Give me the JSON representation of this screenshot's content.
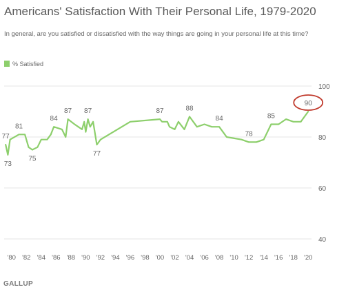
{
  "source": "GALLUP",
  "chart_data": {
    "type": "line",
    "title": "Americans' Satisfaction With Their Personal Life, 1979-2020",
    "subtitle": "In general, are you satisfied or dissatisfied with the way things are going in your personal life at this time?",
    "legend": "top-left",
    "grid": true,
    "ylim": [
      40,
      100
    ],
    "yticks": [
      40,
      60,
      80,
      100
    ],
    "xlim": [
      1979,
      2021
    ],
    "xtick_values": [
      1980,
      1982,
      1984,
      1986,
      1988,
      1990,
      1992,
      1994,
      1996,
      1998,
      2000,
      2002,
      2004,
      2006,
      2008,
      2010,
      2012,
      2014,
      2016,
      2018,
      2020
    ],
    "xtick_labels": [
      "'80",
      "'82",
      "'84",
      "'86",
      "'88",
      "'90",
      "'92",
      "'94",
      "'96",
      "'98",
      "'00",
      "'02",
      "'04",
      "'06",
      "'08",
      "'10",
      "'12",
      "'14",
      "'16",
      "'18",
      "'20"
    ],
    "series": [
      {
        "name": "% Satisfied",
        "color": "#8dcf6c",
        "points": [
          [
            1979.2,
            77
          ],
          [
            1979.5,
            73
          ],
          [
            1979.8,
            79
          ],
          [
            1981,
            81
          ],
          [
            1981.8,
            81
          ],
          [
            1982.3,
            76
          ],
          [
            1982.8,
            75
          ],
          [
            1983.5,
            76
          ],
          [
            1984,
            79
          ],
          [
            1984.8,
            79
          ],
          [
            1985.3,
            81
          ],
          [
            1985.7,
            84
          ],
          [
            1986.8,
            83
          ],
          [
            1987.3,
            80
          ],
          [
            1987.6,
            87
          ],
          [
            1988.5,
            85
          ],
          [
            1989,
            84
          ],
          [
            1989.5,
            83
          ],
          [
            1989.8,
            86
          ],
          [
            1990,
            82
          ],
          [
            1990.3,
            87
          ],
          [
            1990.6,
            84
          ],
          [
            1991,
            86
          ],
          [
            1991.5,
            77
          ],
          [
            1992,
            79
          ],
          [
            1996,
            86
          ],
          [
            2000,
            87
          ],
          [
            2000.3,
            86
          ],
          [
            2001,
            86
          ],
          [
            2001.3,
            84
          ],
          [
            2002,
            83
          ],
          [
            2002.5,
            86
          ],
          [
            2003.3,
            83
          ],
          [
            2004,
            88
          ],
          [
            2005,
            84
          ],
          [
            2006,
            85
          ],
          [
            2007,
            84
          ],
          [
            2008,
            84
          ],
          [
            2009,
            80
          ],
          [
            2011,
            79
          ],
          [
            2012,
            78
          ],
          [
            2013,
            78
          ],
          [
            2014,
            79
          ],
          [
            2015,
            85
          ],
          [
            2016,
            85
          ],
          [
            2017,
            87
          ],
          [
            2018,
            86
          ],
          [
            2019,
            86
          ],
          [
            2020,
            90
          ]
        ]
      }
    ],
    "data_labels": [
      {
        "x": 1979.2,
        "y": 77,
        "text": "77",
        "pos": "above"
      },
      {
        "x": 1979.5,
        "y": 73,
        "text": "73",
        "pos": "below"
      },
      {
        "x": 1981,
        "y": 81,
        "text": "81",
        "pos": "above"
      },
      {
        "x": 1982.8,
        "y": 75,
        "text": "75",
        "pos": "below"
      },
      {
        "x": 1985.7,
        "y": 84,
        "text": "84",
        "pos": "above"
      },
      {
        "x": 1987.6,
        "y": 87,
        "text": "87",
        "pos": "above"
      },
      {
        "x": 1990.3,
        "y": 87,
        "text": "87",
        "pos": "above"
      },
      {
        "x": 1991.5,
        "y": 77,
        "text": "77",
        "pos": "below"
      },
      {
        "x": 2000,
        "y": 87,
        "text": "87",
        "pos": "above"
      },
      {
        "x": 2004,
        "y": 88,
        "text": "88",
        "pos": "above"
      },
      {
        "x": 2008,
        "y": 84,
        "text": "84",
        "pos": "above"
      },
      {
        "x": 2012,
        "y": 78,
        "text": "78",
        "pos": "above"
      },
      {
        "x": 2015,
        "y": 85,
        "text": "85",
        "pos": "above"
      },
      {
        "x": 2020,
        "y": 90,
        "text": "90",
        "pos": "above",
        "highlight": true
      }
    ],
    "highlight_color": "#c0392b"
  }
}
